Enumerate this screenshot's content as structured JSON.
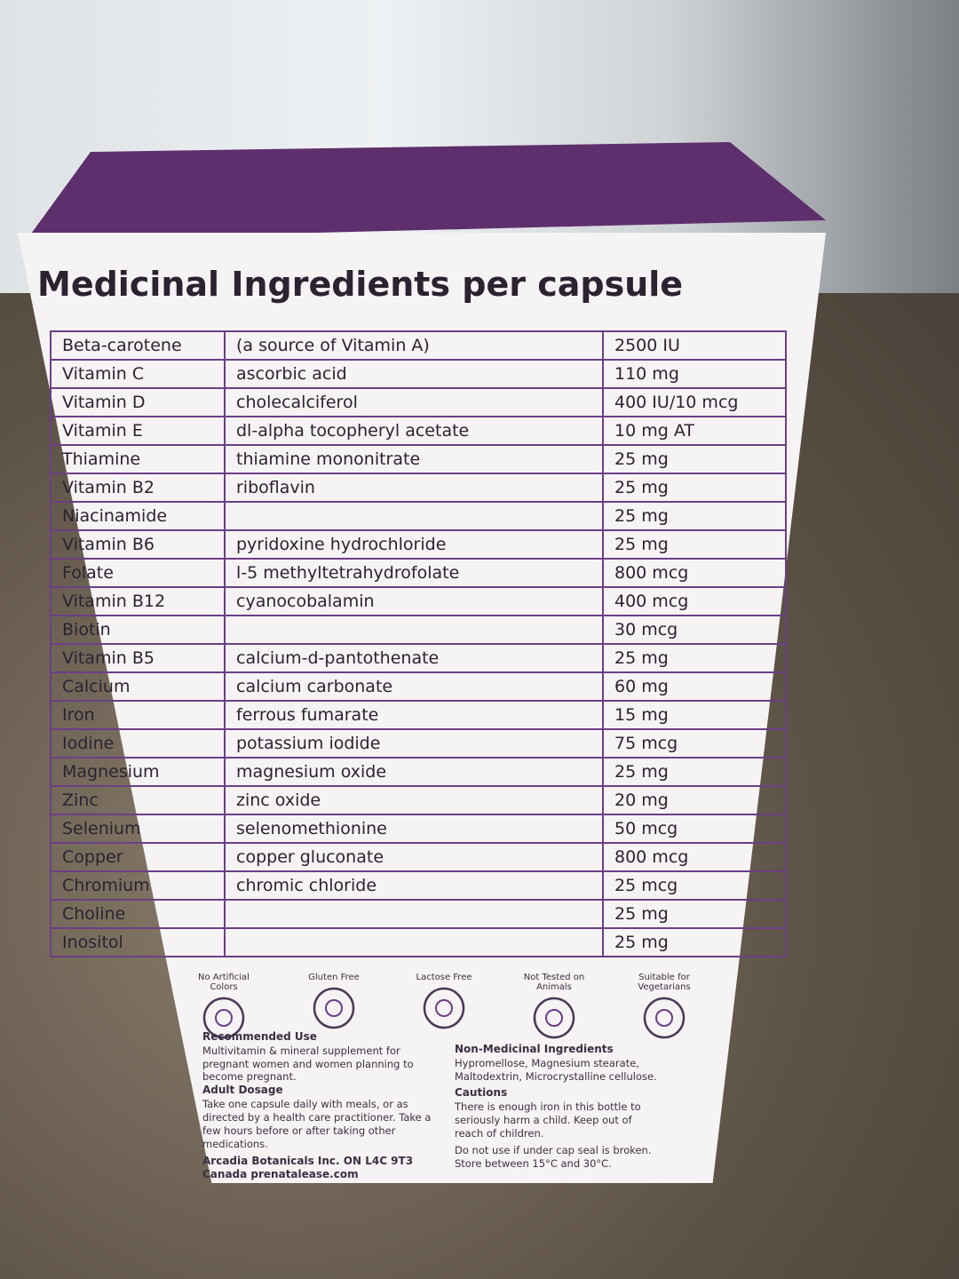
{
  "title": "Medicinal Ingredients per capsule",
  "table": {
    "rows": [
      [
        "Beta-carotene",
        "(a source of Vitamin A)",
        "2500 IU"
      ],
      [
        "Vitamin C",
        "ascorbic acid",
        "110 mg"
      ],
      [
        "Vitamin D",
        "cholecalciferol",
        "400 IU/10 mcg"
      ],
      [
        "Vitamin E",
        "dl-alpha tocopheryl acetate",
        "10 mg AT"
      ],
      [
        "Thiamine",
        "thiamine mononitrate",
        "25 mg"
      ],
      [
        "Vitamin B2",
        "riboflavin",
        "25 mg"
      ],
      [
        "Niacinamide",
        null,
        "25 mg"
      ],
      [
        "Vitamin B6",
        "pyridoxine hydrochloride",
        "25 mg"
      ],
      [
        "Folate",
        "l-5 methyltetrahydrofolate",
        "800 mcg"
      ],
      [
        "Vitamin B12",
        "cyanocobalamin",
        "400 mcg"
      ],
      [
        "Biotin",
        null,
        "30 mcg"
      ],
      [
        "Vitamin B5",
        "calcium-d-pantothenate",
        "25 mg"
      ],
      [
        "Calcium",
        "calcium carbonate",
        "60 mg"
      ],
      [
        "Iron",
        "ferrous fumarate",
        "15 mg"
      ],
      [
        "Iodine",
        "potassium iodide",
        "75 mcg"
      ],
      [
        "Magnesium",
        "magnesium oxide",
        "25 mg"
      ],
      [
        "Zinc",
        "zinc oxide",
        "20 mg"
      ],
      [
        "Selenium",
        "selenomethionine",
        "50 mcg"
      ],
      [
        "Copper",
        "copper gluconate",
        "800 mcg"
      ],
      [
        "Chromium",
        "chromic chloride",
        "25 mcg"
      ],
      [
        "Choline",
        null,
        "25 mg"
      ],
      [
        "Inositol",
        null,
        "25 mg"
      ]
    ]
  },
  "badges": [
    "No Artificial Colors",
    "Gluten Free",
    "Lactose Free",
    "Not Tested on Animals",
    "Suitable for Vegetarians"
  ],
  "recommended_use": {
    "heading": "Recommended Use",
    "text": "Multivitamin & mineral supplement for pregnant women and women planning to become pregnant."
  },
  "adult_dosage": {
    "heading": "Adult Dosage",
    "text": "Take one capsule daily with meals, or as directed by a health care practitioner. Take a few hours before or after taking other medications."
  },
  "company": "Arcadia Botanicals Inc. ON L4C 9T3 Canada prenatalease.com",
  "non_medicinal": {
    "heading": "Non-Medicinal Ingredients",
    "text": "Hypromellose, Magnesium stearate, Maltodextrin, Microcrystalline cellulose."
  },
  "cautions": {
    "heading": "Cautions",
    "text": "There is enough iron in this bottle to seriously harm a child. Keep out of reach of children.",
    "text2": "Do not use if under cap seal is broken. Store between 15°C and 30°C."
  }
}
